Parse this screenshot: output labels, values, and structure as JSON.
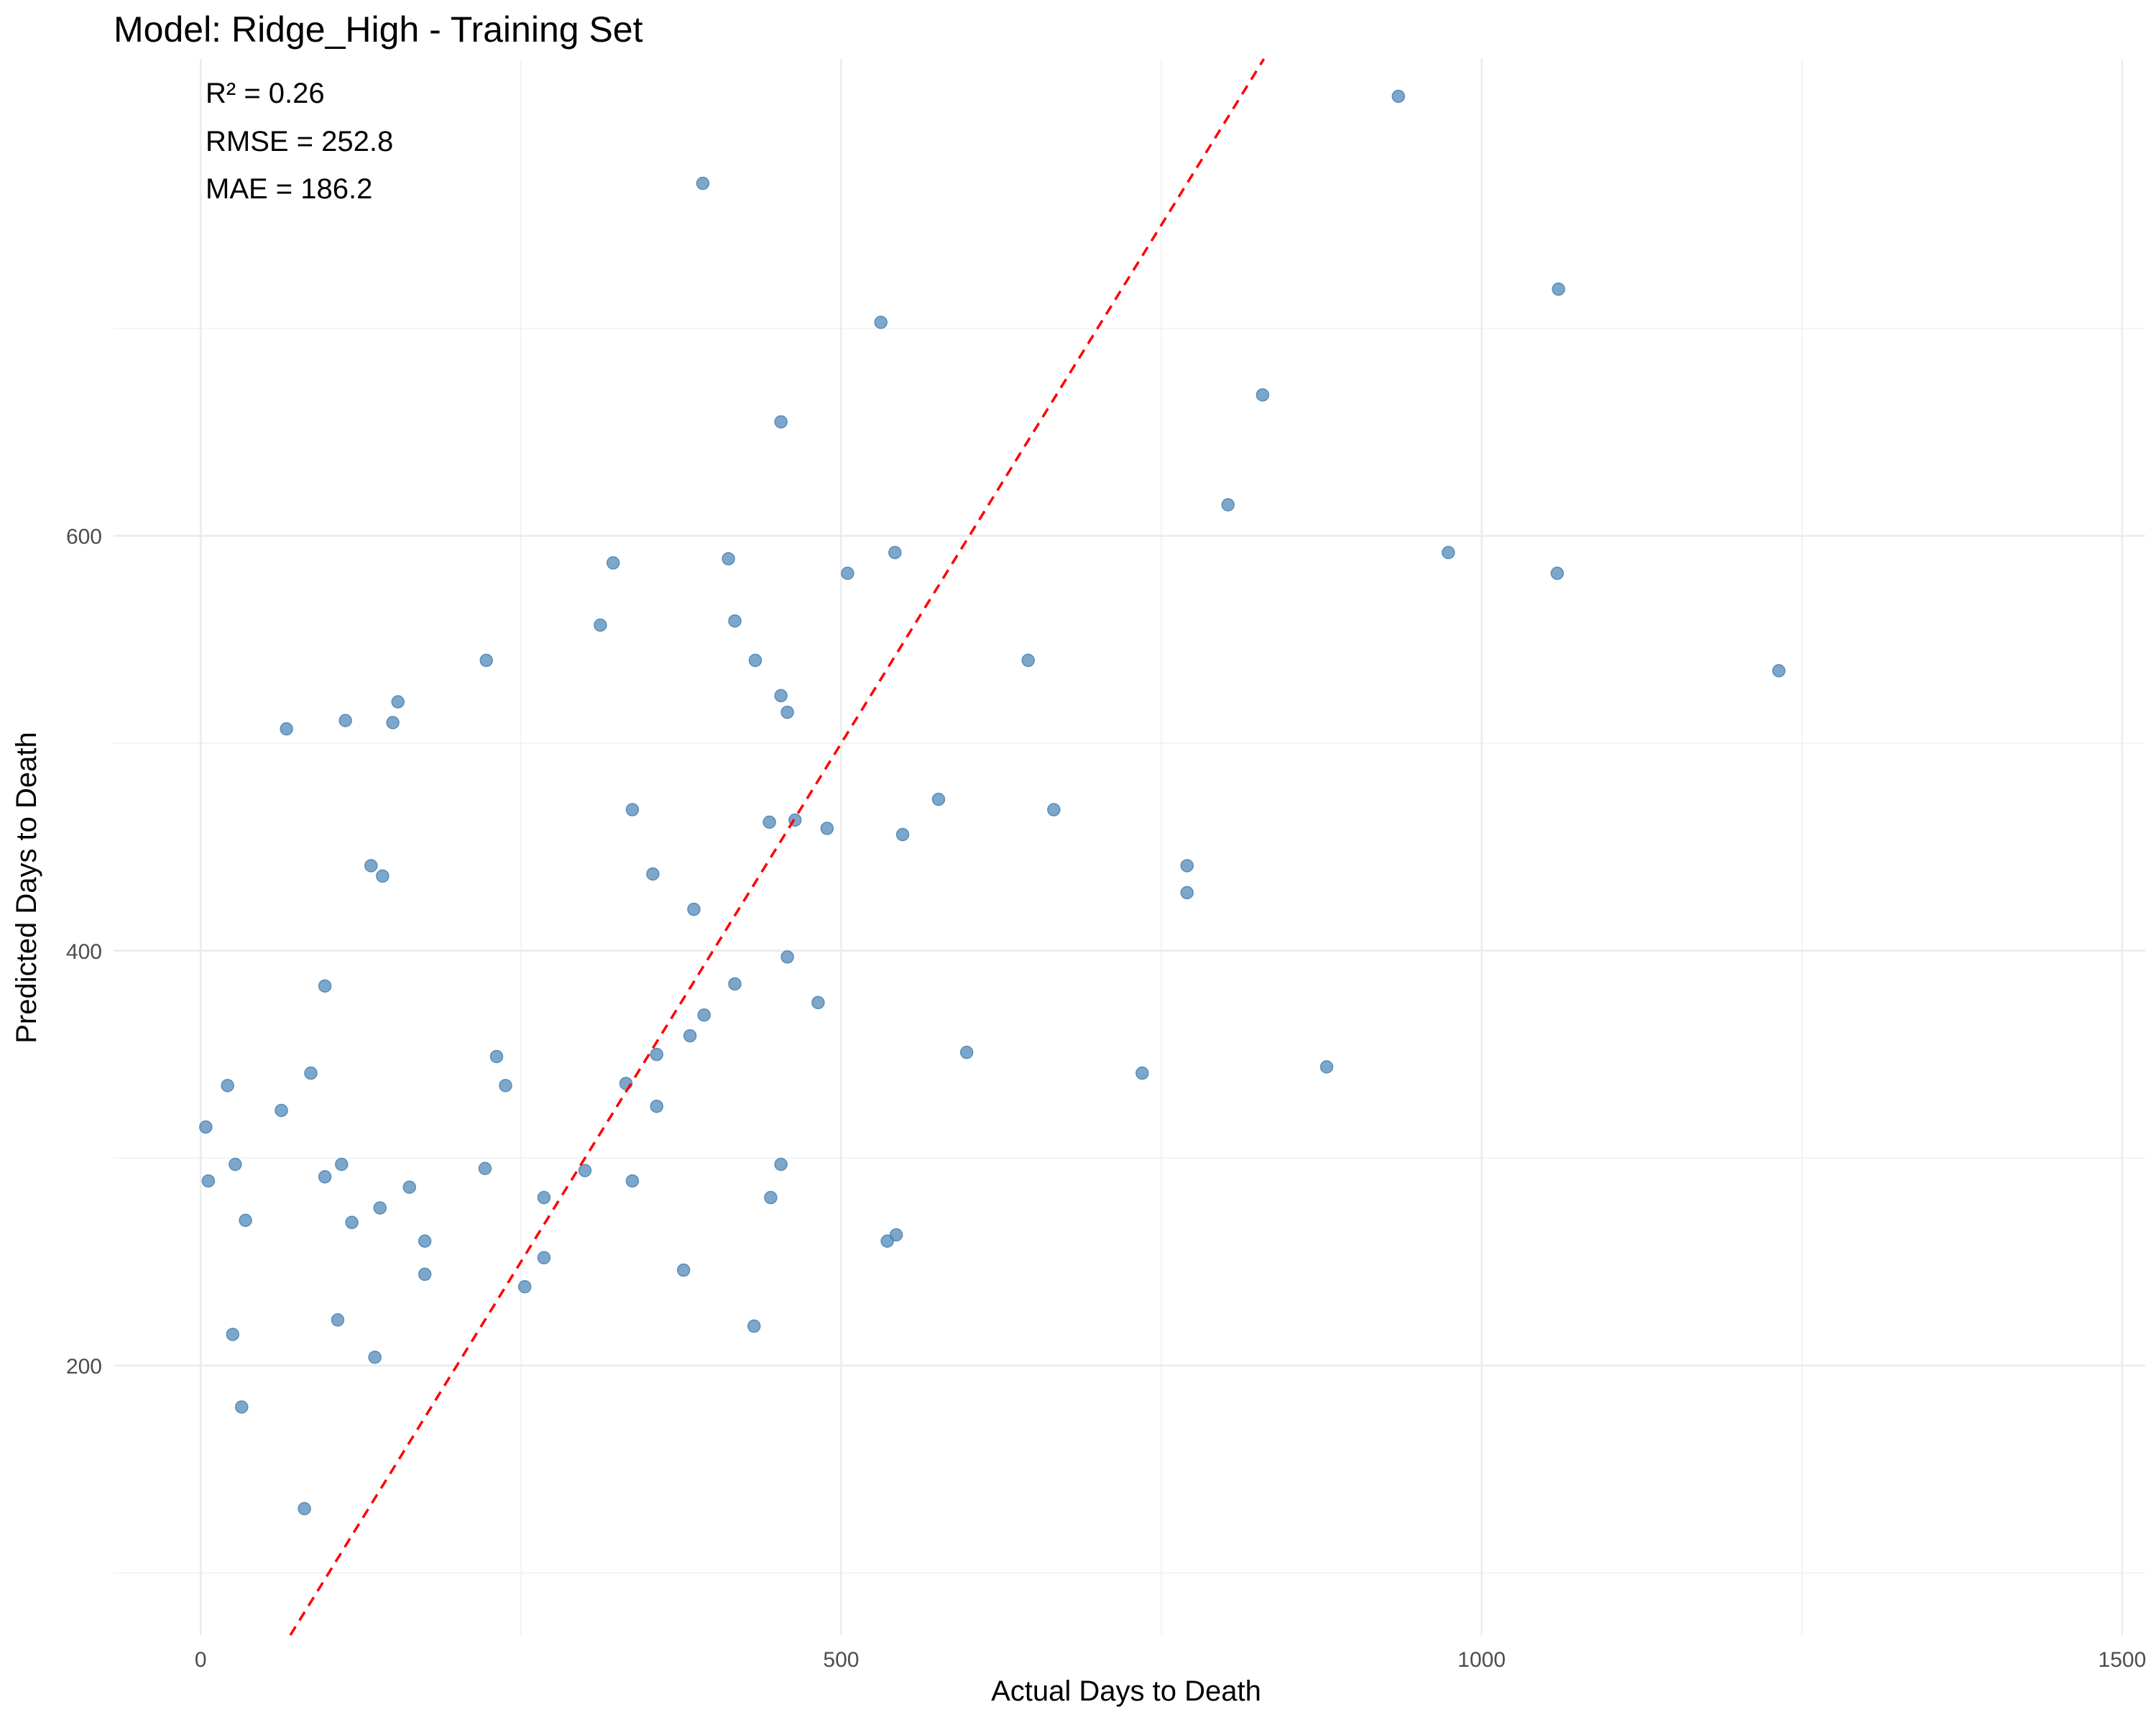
{
  "chart_data": {
    "type": "scatter",
    "title": "Model: Ridge_High - Training Set",
    "xlabel": "Actual Days to Death",
    "ylabel": "Predicted Days to Death",
    "xlim": [
      -68,
      1518
    ],
    "ylim": [
      70,
      830
    ],
    "x_ticks": [
      0,
      500,
      1000,
      1500
    ],
    "y_ticks": [
      200,
      400,
      600
    ],
    "grid": true,
    "annotations": [
      "R² = 0.26",
      "RMSE = 252.8",
      "MAE = 186.2"
    ],
    "reference_line": {
      "type": "identity",
      "label": "",
      "style": "dashed",
      "color": "#ff0000"
    },
    "point_color": "#4682b4",
    "points": [
      [
        935,
        812
      ],
      [
        392,
        770
      ],
      [
        1060,
        719
      ],
      [
        531,
        703
      ],
      [
        829,
        668
      ],
      [
        453,
        655
      ],
      [
        802,
        615
      ],
      [
        542,
        592
      ],
      [
        974,
        592
      ],
      [
        412,
        589
      ],
      [
        322,
        587
      ],
      [
        505,
        582
      ],
      [
        1059,
        582
      ],
      [
        417,
        559
      ],
      [
        312,
        557
      ],
      [
        433,
        540
      ],
      [
        223,
        540
      ],
      [
        1232,
        535
      ],
      [
        646,
        540
      ],
      [
        453,
        523
      ],
      [
        154,
        520
      ],
      [
        458,
        515
      ],
      [
        150,
        510
      ],
      [
        113,
        511
      ],
      [
        67,
        507
      ],
      [
        576,
        473
      ],
      [
        337,
        468
      ],
      [
        464,
        463
      ],
      [
        666,
        468
      ],
      [
        444,
        462
      ],
      [
        489,
        459
      ],
      [
        548,
        456
      ],
      [
        353,
        437
      ],
      [
        770,
        441
      ],
      [
        133,
        441
      ],
      [
        142,
        436
      ],
      [
        770,
        428
      ],
      [
        385,
        420
      ],
      [
        458,
        397
      ],
      [
        97,
        383
      ],
      [
        417,
        384
      ],
      [
        482,
        375
      ],
      [
        393,
        369
      ],
      [
        382,
        359
      ],
      [
        598,
        351
      ],
      [
        356,
        350
      ],
      [
        231,
        349
      ],
      [
        879,
        344
      ],
      [
        735,
        341
      ],
      [
        86,
        341
      ],
      [
        21,
        335
      ],
      [
        238,
        335
      ],
      [
        332,
        336
      ],
      [
        63,
        323
      ],
      [
        356,
        325
      ],
      [
        4,
        315
      ],
      [
        110,
        297
      ],
      [
        453,
        297
      ],
      [
        27,
        297
      ],
      [
        222,
        295
      ],
      [
        300,
        294
      ],
      [
        97,
        291
      ],
      [
        6,
        289
      ],
      [
        337,
        289
      ],
      [
        163,
        286
      ],
      [
        268,
        281
      ],
      [
        445,
        281
      ],
      [
        140,
        276
      ],
      [
        35,
        270
      ],
      [
        118,
        269
      ],
      [
        175,
        260
      ],
      [
        536,
        260
      ],
      [
        543,
        263
      ],
      [
        268,
        252
      ],
      [
        377,
        246
      ],
      [
        175,
        244
      ],
      [
        253,
        238
      ],
      [
        107,
        222
      ],
      [
        432,
        219
      ],
      [
        25,
        215
      ],
      [
        136,
        204
      ],
      [
        32,
        180
      ],
      [
        81,
        131
      ]
    ]
  }
}
